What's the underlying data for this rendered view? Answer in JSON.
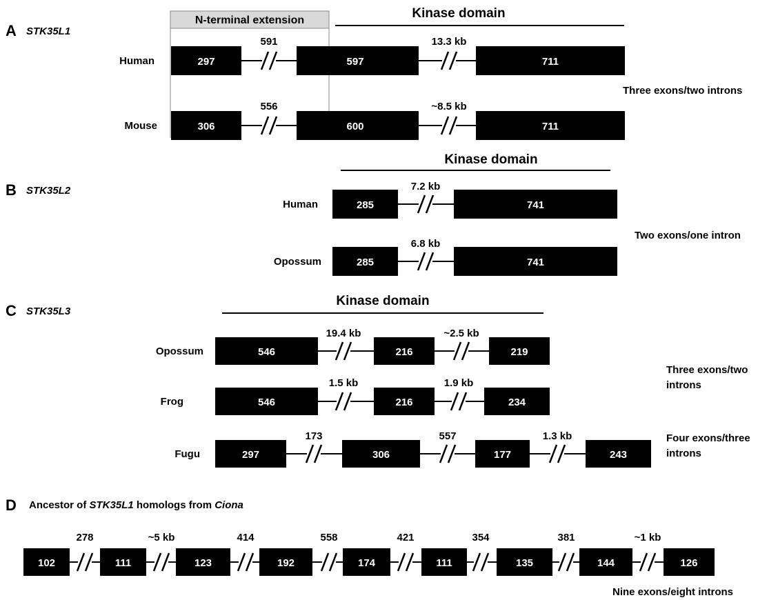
{
  "panels": {
    "A": {
      "letter": "A",
      "gene": "STK35L1",
      "domain": "Kinase domain",
      "extension": "N-terminal extension",
      "note": "Three exons/two introns"
    },
    "B": {
      "letter": "B",
      "gene": "STK35L2",
      "domain": "Kinase domain",
      "note": "Two exons/one intron"
    },
    "C": {
      "letter": "C",
      "gene": "STK35L3",
      "domain": "Kinase domain",
      "note1_line1": "Three exons/two",
      "note1_line2": "introns",
      "note2_line1": "Four exons/three",
      "note2_line2": "introns"
    },
    "D": {
      "letter": "D",
      "title_prefix": "Ancestor of ",
      "title_gene": "STK35L1",
      "title_mid": " homologs from ",
      "title_species": "Ciona",
      "note": "Nine exons/eight introns"
    }
  },
  "rows": [
    {
      "id": "a-human",
      "species": "Human",
      "exons": [
        "297",
        "597",
        "711"
      ],
      "introns": [
        "591",
        "13.3 kb"
      ]
    },
    {
      "id": "a-mouse",
      "species": "Mouse",
      "exons": [
        "306",
        "600",
        "711"
      ],
      "introns": [
        "556",
        "~8.5 kb"
      ]
    },
    {
      "id": "b-human",
      "species": "Human",
      "exons": [
        "285",
        "741"
      ],
      "introns": [
        "7.2 kb"
      ]
    },
    {
      "id": "b-opossum",
      "species": "Opossum",
      "exons": [
        "285",
        "741"
      ],
      "introns": [
        "6.8 kb"
      ]
    },
    {
      "id": "c-opossum",
      "species": "Opossum",
      "exons": [
        "546",
        "216",
        "219"
      ],
      "introns": [
        "19.4 kb",
        "~2.5 kb"
      ]
    },
    {
      "id": "c-frog",
      "species": "Frog",
      "exons": [
        "546",
        "216",
        "234"
      ],
      "introns": [
        "1.5 kb",
        "1.9 kb"
      ]
    },
    {
      "id": "c-fugu",
      "species": "Fugu",
      "exons": [
        "297",
        "306",
        "177",
        "243"
      ],
      "introns": [
        "173",
        "557",
        "1.3 kb"
      ]
    },
    {
      "id": "d-ciona",
      "species": "",
      "exons": [
        "102",
        "111",
        "123",
        "192",
        "174",
        "111",
        "135",
        "144",
        "126"
      ],
      "introns": [
        "278",
        "~5 kb",
        "414",
        "558",
        "421",
        "354",
        "381",
        "~1 kb"
      ]
    }
  ]
}
